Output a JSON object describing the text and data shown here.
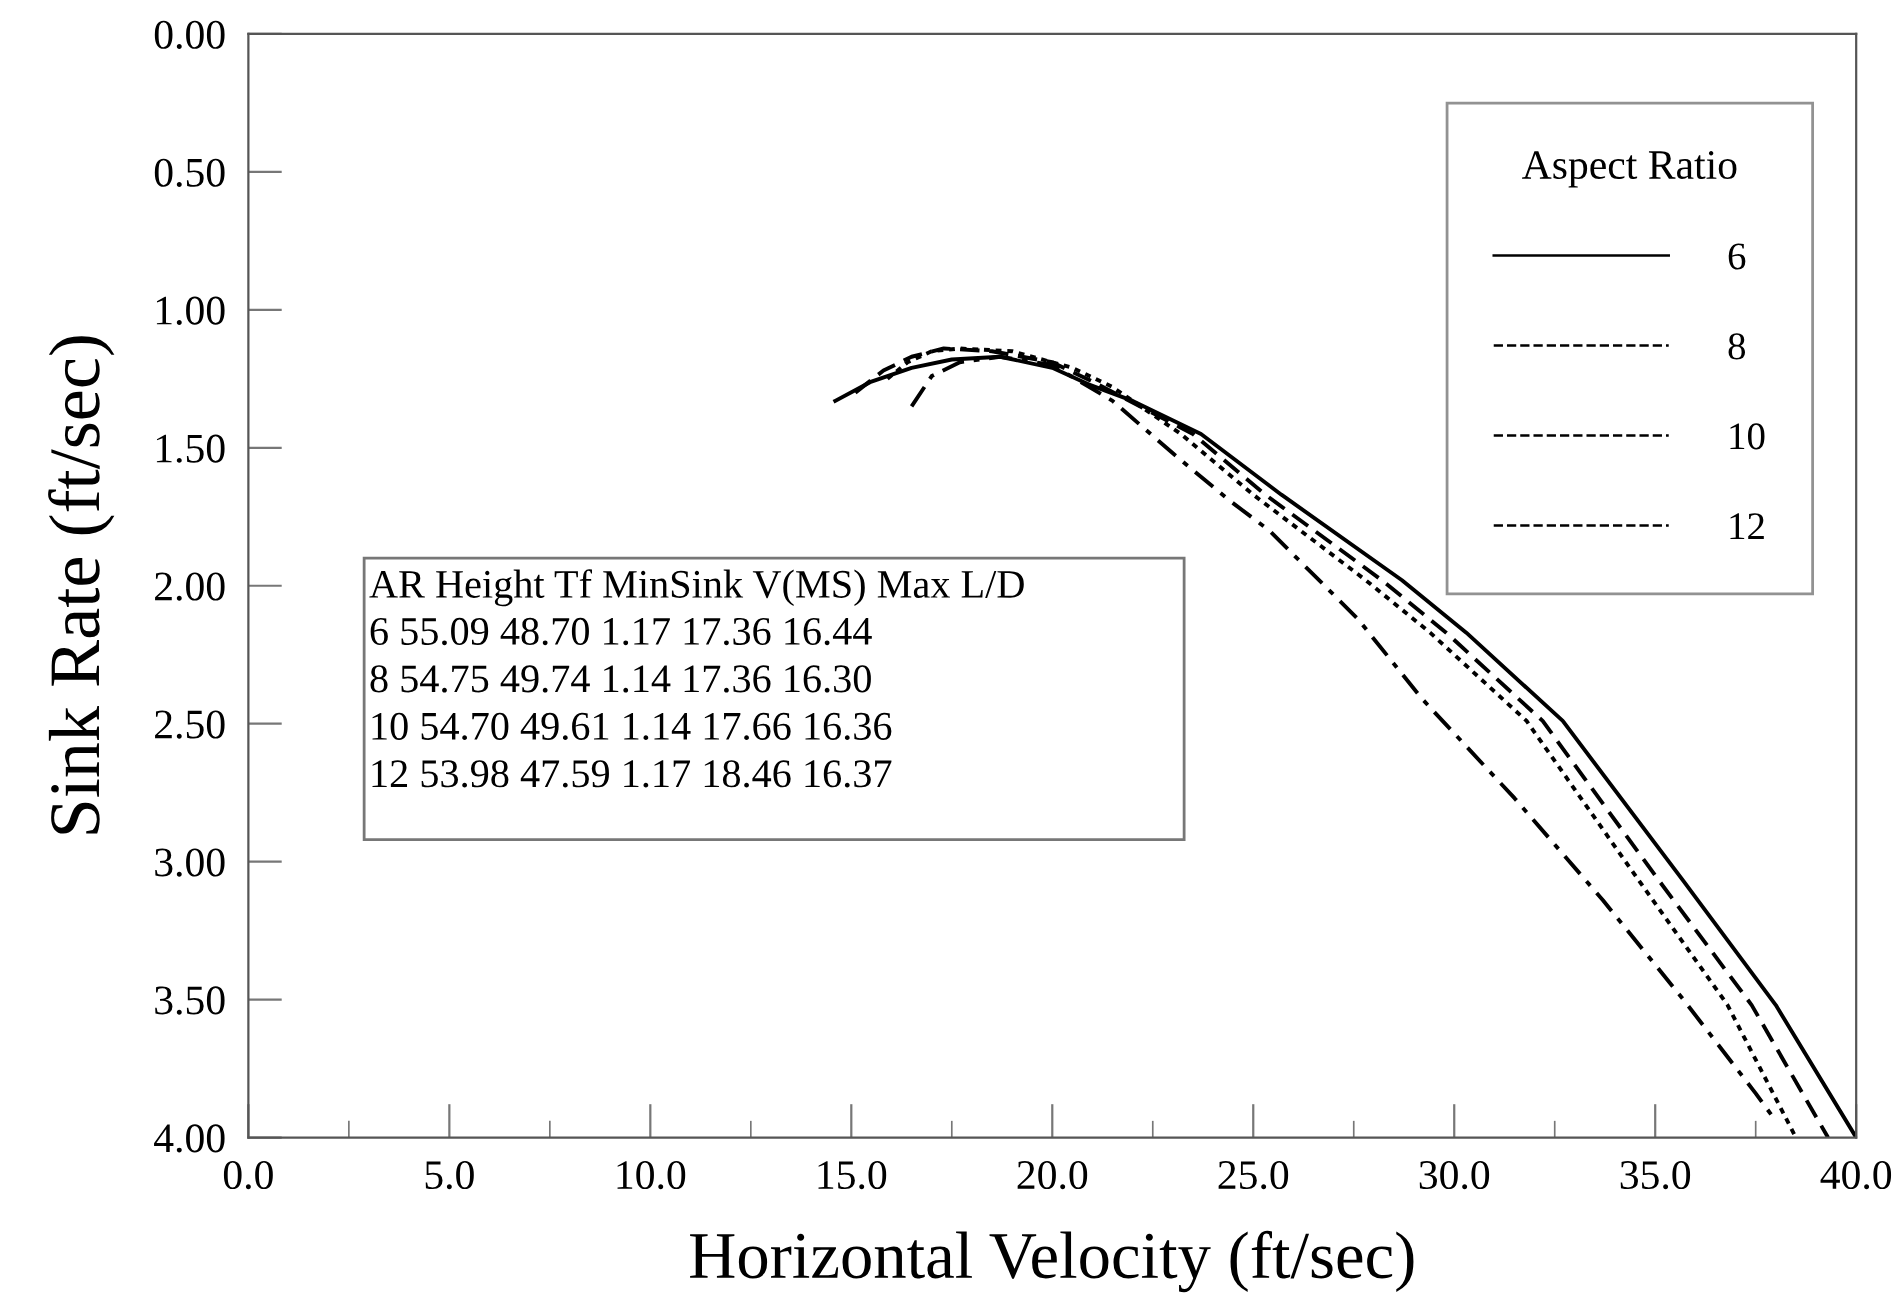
{
  "chart_data": {
    "type": "line",
    "xlabel": "Horizontal Velocity (ft/sec)",
    "ylabel": "Sink Rate (ft/sec)",
    "legend_title": "Aspect Ratio",
    "xlim": [
      0.0,
      40.0
    ],
    "ylim": [
      4.0,
      0.0
    ],
    "xticks": [
      {
        "value": 0,
        "label": "0.0"
      },
      {
        "value": 5,
        "label": "5.0"
      },
      {
        "value": 10,
        "label": "10.0"
      },
      {
        "value": 15,
        "label": "15.0"
      },
      {
        "value": 20,
        "label": "20.0"
      },
      {
        "value": 25,
        "label": "25.0"
      },
      {
        "value": 30,
        "label": "30.0"
      },
      {
        "value": 35,
        "label": "35.0"
      },
      {
        "value": 40,
        "label": "40.0"
      }
    ],
    "yticks": [
      {
        "value": 0,
        "label": "0.00"
      },
      {
        "value": 0.5,
        "label": "0.50"
      },
      {
        "value": 1.0,
        "label": "1.00"
      },
      {
        "value": 1.5,
        "label": "1.50"
      },
      {
        "value": 2.0,
        "label": "2.00"
      },
      {
        "value": 2.5,
        "label": "2.50"
      },
      {
        "value": 3.0,
        "label": "3.00"
      },
      {
        "value": 3.5,
        "label": "3.50"
      },
      {
        "value": 4.0,
        "label": "4.00"
      }
    ],
    "grid": false,
    "legend": "top right",
    "marker": "none",
    "series": [
      {
        "name": "6",
        "color": "#000000",
        "line_style": "solid",
        "x": [
          14.6,
          15.5,
          16.5,
          17.5,
          18.7,
          20.0,
          20.9,
          22.0,
          23.7,
          25.7,
          28.7,
          30.3,
          32.7,
          35.7,
          38.0,
          40.0
        ],
        "values": [
          1.33,
          1.26,
          1.21,
          1.18,
          1.17,
          1.21,
          1.27,
          1.33,
          1.45,
          1.67,
          1.98,
          2.17,
          2.49,
          3.07,
          3.52,
          4.0
        ]
      },
      {
        "name": "8",
        "color": "#000000",
        "line_style": "dashed",
        "x": [
          15.1,
          15.8,
          16.5,
          17.3,
          18.5,
          20.0,
          21.0,
          23.5,
          25.3,
          28.2,
          29.8,
          32.2,
          35.1,
          37.4,
          39.3
        ],
        "values": [
          1.3,
          1.22,
          1.17,
          1.14,
          1.15,
          1.19,
          1.26,
          1.45,
          1.67,
          1.98,
          2.17,
          2.49,
          3.07,
          3.52,
          4.0
        ]
      },
      {
        "name": "10",
        "color": "#000000",
        "line_style": "dotted",
        "x": [
          15.9,
          16.4,
          17.0,
          17.7,
          19.0,
          20.5,
          21.5,
          23.2,
          25.0,
          27.8,
          29.4,
          31.8,
          34.6,
          36.8,
          38.5
        ],
        "values": [
          1.25,
          1.19,
          1.15,
          1.14,
          1.15,
          1.21,
          1.28,
          1.45,
          1.67,
          1.98,
          2.17,
          2.49,
          3.07,
          3.52,
          4.0
        ]
      },
      {
        "name": "12",
        "color": "#000000",
        "line_style": "dashdot",
        "x": [
          16.5,
          17.0,
          17.7,
          18.7,
          20.0,
          21.5,
          23.0,
          24.4,
          25.4,
          27.6,
          29.2,
          31.5,
          33.7,
          35.7,
          37.5,
          37.9
        ],
        "values": [
          1.35,
          1.24,
          1.19,
          1.17,
          1.2,
          1.33,
          1.52,
          1.69,
          1.8,
          2.12,
          2.41,
          2.77,
          3.14,
          3.5,
          3.84,
          3.92
        ]
      }
    ],
    "annotations": [
      "AR Height Tf MinSink V(MS) Max L/D",
      "6 55.09 48.70 1.17 17.36 16.44",
      "8 54.75 49.74 1.14 17.36 16.30",
      "10 54.70 49.61 1.14 17.66 16.36",
      "12 53.98 47.59 1.17 18.46 16.37"
    ]
  }
}
